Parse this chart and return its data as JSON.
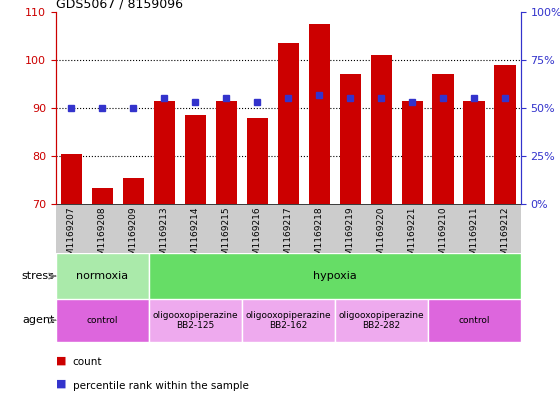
{
  "title": "GDS5067 / 8159096",
  "samples": [
    "GSM1169207",
    "GSM1169208",
    "GSM1169209",
    "GSM1169213",
    "GSM1169214",
    "GSM1169215",
    "GSM1169216",
    "GSM1169217",
    "GSM1169218",
    "GSM1169219",
    "GSM1169220",
    "GSM1169221",
    "GSM1169210",
    "GSM1169211",
    "GSM1169212"
  ],
  "counts": [
    80.5,
    73.5,
    75.5,
    91.5,
    88.5,
    91.5,
    88.0,
    103.5,
    107.5,
    97.0,
    101.0,
    91.5,
    97.0,
    91.5,
    99.0
  ],
  "percentiles": [
    50,
    50,
    50,
    55,
    53,
    55,
    53,
    55,
    57,
    55,
    55,
    53,
    55,
    55,
    55
  ],
  "bar_color": "#cc0000",
  "marker_color": "#3333cc",
  "ylim_left": [
    70,
    110
  ],
  "ylim_right": [
    0,
    100
  ],
  "yticks_left": [
    70,
    80,
    90,
    100,
    110
  ],
  "yticks_right": [
    0,
    25,
    50,
    75,
    100
  ],
  "ytick_labels_right": [
    "0%",
    "25%",
    "50%",
    "75%",
    "100%"
  ],
  "stress_groups": [
    {
      "label": "normoxia",
      "start": 0,
      "end": 2,
      "color": "#aaeaaa"
    },
    {
      "label": "hypoxia",
      "start": 3,
      "end": 14,
      "color": "#66dd66"
    }
  ],
  "agent_groups": [
    {
      "label": "control",
      "start": 0,
      "end": 2,
      "color": "#dd66dd"
    },
    {
      "label": "oligooxopiperazine\nBB2-125",
      "start": 3,
      "end": 5,
      "color": "#eeaaee"
    },
    {
      "label": "oligooxopiperazine\nBB2-162",
      "start": 6,
      "end": 8,
      "color": "#eeaaee"
    },
    {
      "label": "oligooxopiperazine\nBB2-282",
      "start": 9,
      "end": 11,
      "color": "#eeaaee"
    },
    {
      "label": "control",
      "start": 12,
      "end": 14,
      "color": "#dd66dd"
    }
  ]
}
